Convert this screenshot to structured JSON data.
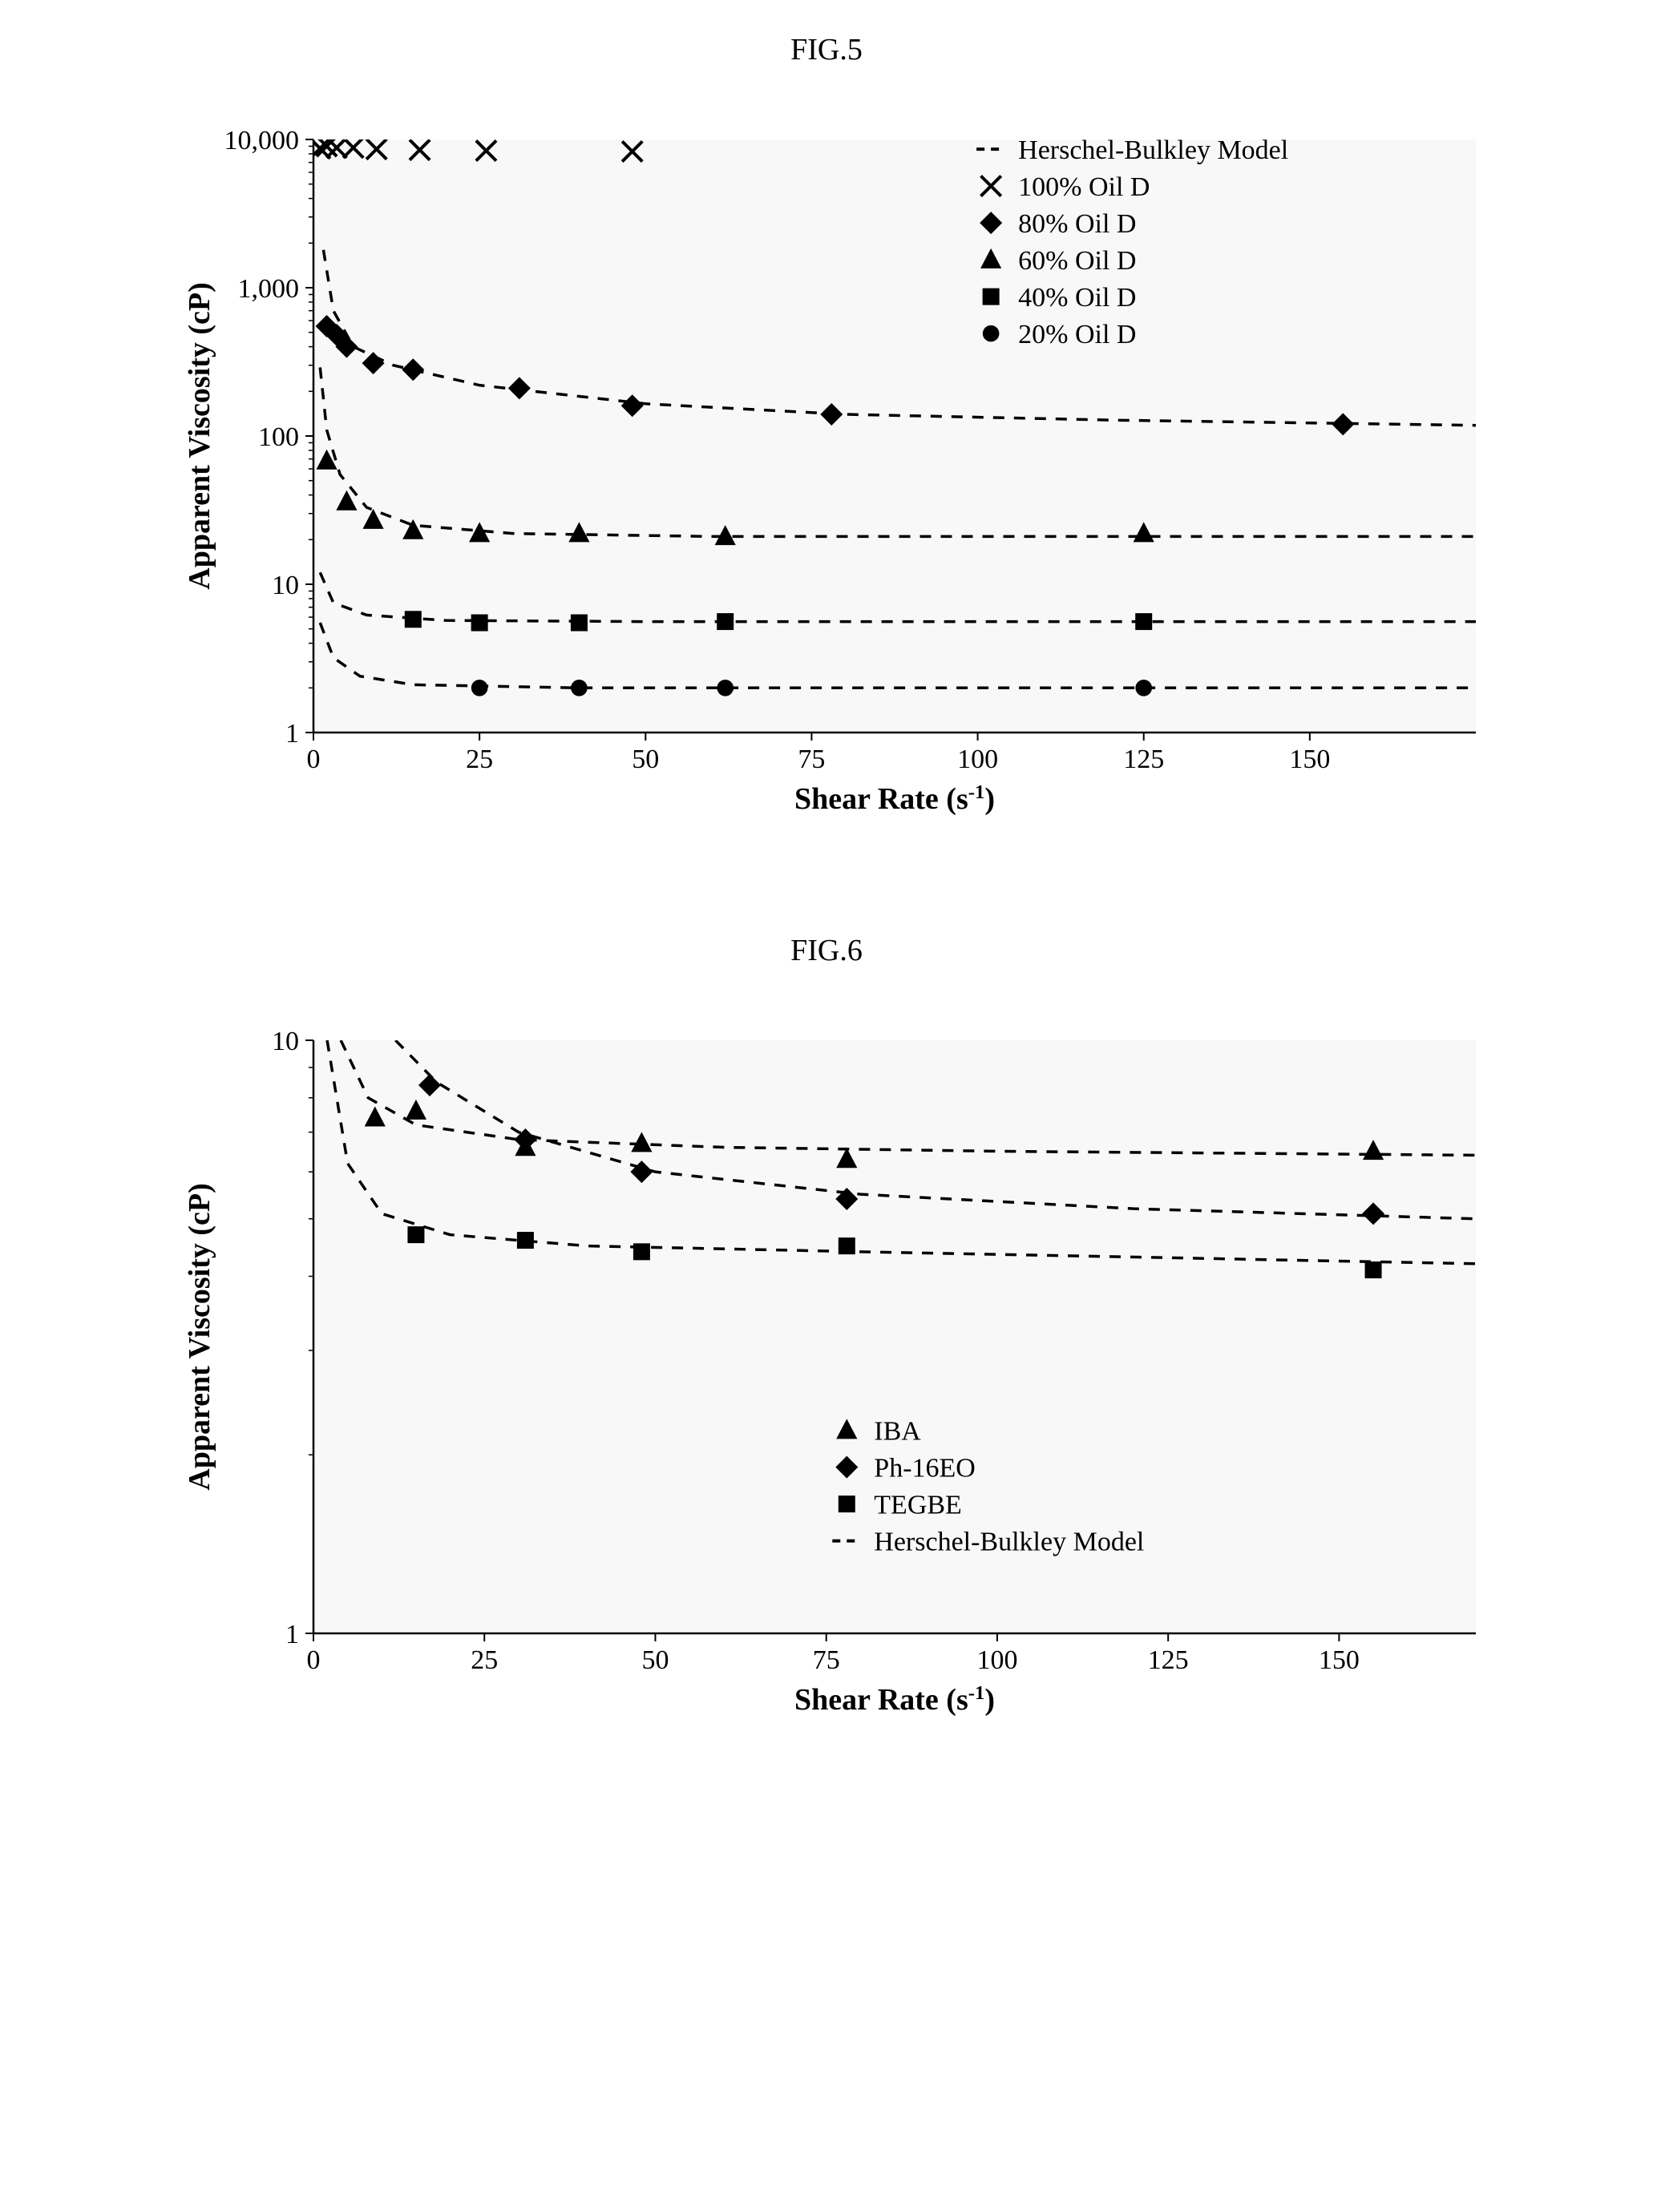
{
  "fig5": {
    "label": "FIG.5",
    "type": "scatter-log-y",
    "xlabel": "Shear Rate (s",
    "xlabel_sup": "-1",
    "xlabel_close": ")",
    "ylabel": "Apparent Viscosity (cP)",
    "title_fontsize": 38,
    "axis_label_fontsize": 38,
    "tick_fontsize": 34,
    "xlim": [
      0,
      175
    ],
    "xtick_step": 25,
    "xticks": [
      0,
      25,
      50,
      75,
      100,
      125,
      150
    ],
    "ylim_log": [
      1,
      10000
    ],
    "yticks": [
      1,
      10,
      100,
      "1,000",
      "10,000"
    ],
    "background_color": "#f8f8f8",
    "axis_color": "#000000",
    "grid_color": "none",
    "marker_color": "#000000",
    "dash_color": "#000000",
    "marker_size": 14,
    "legend": {
      "x": 102,
      "y_top": 8600,
      "items": [
        {
          "marker": "dash",
          "label": "Herschel-Bulkley Model"
        },
        {
          "marker": "x",
          "label": "100% Oil D"
        },
        {
          "marker": "diamond",
          "label": "80% Oil D"
        },
        {
          "marker": "triangle",
          "label": "60% Oil D"
        },
        {
          "marker": "square",
          "label": "40% Oil D"
        },
        {
          "marker": "circle",
          "label": "20% Oil D"
        }
      ]
    },
    "series": [
      {
        "name": "100% Oil D",
        "marker": "x",
        "points": [
          {
            "x": 1,
            "y": 8700
          },
          {
            "x": 2,
            "y": 9000
          },
          {
            "x": 3.5,
            "y": 8800
          },
          {
            "x": 6,
            "y": 8800
          },
          {
            "x": 9.5,
            "y": 8600
          },
          {
            "x": 16,
            "y": 8500
          },
          {
            "x": 26,
            "y": 8400
          },
          {
            "x": 48,
            "y": 8300
          }
        ],
        "model_line": []
      },
      {
        "name": "80% Oil D",
        "marker": "diamond",
        "points": [
          {
            "x": 2,
            "y": 550
          },
          {
            "x": 3.5,
            "y": 480
          },
          {
            "x": 5,
            "y": 400
          },
          {
            "x": 9,
            "y": 310
          },
          {
            "x": 15,
            "y": 280
          },
          {
            "x": 31,
            "y": 210
          },
          {
            "x": 48,
            "y": 160
          },
          {
            "x": 78,
            "y": 140
          },
          {
            "x": 155,
            "y": 120
          }
        ],
        "model_line": [
          {
            "x": 1.5,
            "y": 1800
          },
          {
            "x": 3,
            "y": 700
          },
          {
            "x": 6,
            "y": 400
          },
          {
            "x": 12,
            "y": 300
          },
          {
            "x": 25,
            "y": 220
          },
          {
            "x": 50,
            "y": 165
          },
          {
            "x": 80,
            "y": 140
          },
          {
            "x": 120,
            "y": 128
          },
          {
            "x": 175,
            "y": 118
          }
        ]
      },
      {
        "name": "60% Oil D",
        "marker": "triangle",
        "points": [
          {
            "x": 2,
            "y": 68
          },
          {
            "x": 5,
            "y": 36
          },
          {
            "x": 9,
            "y": 27
          },
          {
            "x": 15,
            "y": 23
          },
          {
            "x": 25,
            "y": 22
          },
          {
            "x": 40,
            "y": 22
          },
          {
            "x": 62,
            "y": 21
          },
          {
            "x": 125,
            "y": 22
          }
        ],
        "model_line": [
          {
            "x": 1,
            "y": 290
          },
          {
            "x": 2,
            "y": 110
          },
          {
            "x": 4,
            "y": 55
          },
          {
            "x": 8,
            "y": 33
          },
          {
            "x": 15,
            "y": 25
          },
          {
            "x": 30,
            "y": 22
          },
          {
            "x": 60,
            "y": 21
          },
          {
            "x": 120,
            "y": 21
          },
          {
            "x": 175,
            "y": 21
          }
        ]
      },
      {
        "name": "40% Oil D",
        "marker": "square",
        "points": [
          {
            "x": 15,
            "y": 5.8
          },
          {
            "x": 25,
            "y": 5.5
          },
          {
            "x": 40,
            "y": 5.5
          },
          {
            "x": 62,
            "y": 5.6
          },
          {
            "x": 125,
            "y": 5.6
          }
        ],
        "model_line": [
          {
            "x": 1,
            "y": 12
          },
          {
            "x": 3,
            "y": 7.5
          },
          {
            "x": 8,
            "y": 6.2
          },
          {
            "x": 20,
            "y": 5.7
          },
          {
            "x": 50,
            "y": 5.6
          },
          {
            "x": 100,
            "y": 5.6
          },
          {
            "x": 175,
            "y": 5.6
          }
        ]
      },
      {
        "name": "20% Oil D",
        "marker": "circle",
        "points": [
          {
            "x": 25,
            "y": 2.0
          },
          {
            "x": 40,
            "y": 2.0
          },
          {
            "x": 62,
            "y": 2.0
          },
          {
            "x": 125,
            "y": 2.0
          }
        ],
        "model_line": [
          {
            "x": 1,
            "y": 5.5
          },
          {
            "x": 3,
            "y": 3.2
          },
          {
            "x": 7,
            "y": 2.4
          },
          {
            "x": 15,
            "y": 2.1
          },
          {
            "x": 40,
            "y": 2.0
          },
          {
            "x": 100,
            "y": 2.0
          },
          {
            "x": 175,
            "y": 2.0
          }
        ]
      }
    ]
  },
  "fig6": {
    "label": "FIG.6",
    "type": "scatter-log-y",
    "xlabel": "Shear Rate (s",
    "xlabel_sup": "-1",
    "xlabel_close": ")",
    "ylabel": "Apparent Viscosity (cP)",
    "title_fontsize": 38,
    "axis_label_fontsize": 38,
    "tick_fontsize": 34,
    "xlim": [
      0,
      170
    ],
    "xticks": [
      0,
      25,
      50,
      75,
      100,
      125,
      150
    ],
    "ylim_log": [
      1,
      10
    ],
    "yticks": [
      1,
      10
    ],
    "background_color": "#f8f8f8",
    "axis_color": "#000000",
    "marker_color": "#000000",
    "dash_color": "#000000",
    "marker_size": 14,
    "legend": {
      "x": 78,
      "y_top": 2.2,
      "items": [
        {
          "marker": "triangle",
          "label": "IBA"
        },
        {
          "marker": "diamond",
          "label": "Ph-16EO"
        },
        {
          "marker": "square",
          "label": "TEGBE"
        },
        {
          "marker": "dash",
          "label": "Herschel-Bulkley Model"
        }
      ]
    },
    "series": [
      {
        "name": "IBA",
        "marker": "triangle",
        "points": [
          {
            "x": 9,
            "y": 7.4
          },
          {
            "x": 15,
            "y": 7.6
          },
          {
            "x": 31,
            "y": 6.6
          },
          {
            "x": 48,
            "y": 6.7
          },
          {
            "x": 78,
            "y": 6.3
          },
          {
            "x": 155,
            "y": 6.5
          }
        ],
        "model_line": [
          {
            "x": 4,
            "y": 10
          },
          {
            "x": 8,
            "y": 8.0
          },
          {
            "x": 15,
            "y": 7.2
          },
          {
            "x": 30,
            "y": 6.8
          },
          {
            "x": 60,
            "y": 6.6
          },
          {
            "x": 100,
            "y": 6.5
          },
          {
            "x": 170,
            "y": 6.4
          }
        ]
      },
      {
        "name": "Ph-16EO",
        "marker": "diamond",
        "points": [
          {
            "x": 17,
            "y": 8.4
          },
          {
            "x": 31,
            "y": 6.8
          },
          {
            "x": 48,
            "y": 6.0
          },
          {
            "x": 78,
            "y": 5.4
          },
          {
            "x": 155,
            "y": 5.1
          }
        ],
        "model_line": [
          {
            "x": 12,
            "y": 10
          },
          {
            "x": 18,
            "y": 8.5
          },
          {
            "x": 30,
            "y": 7.0
          },
          {
            "x": 50,
            "y": 6.0
          },
          {
            "x": 80,
            "y": 5.5
          },
          {
            "x": 120,
            "y": 5.2
          },
          {
            "x": 170,
            "y": 5.0
          }
        ]
      },
      {
        "name": "TEGBE",
        "marker": "square",
        "points": [
          {
            "x": 15,
            "y": 4.7
          },
          {
            "x": 31,
            "y": 4.6
          },
          {
            "x": 48,
            "y": 4.4
          },
          {
            "x": 78,
            "y": 4.5
          },
          {
            "x": 155,
            "y": 4.1
          }
        ],
        "model_line": [
          {
            "x": 2,
            "y": 10
          },
          {
            "x": 5,
            "y": 6.2
          },
          {
            "x": 10,
            "y": 5.1
          },
          {
            "x": 20,
            "y": 4.7
          },
          {
            "x": 40,
            "y": 4.5
          },
          {
            "x": 80,
            "y": 4.4
          },
          {
            "x": 170,
            "y": 4.2
          }
        ]
      }
    ]
  }
}
